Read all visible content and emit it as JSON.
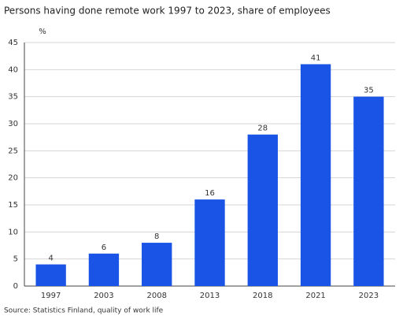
{
  "chart_data": {
    "type": "bar",
    "title": "Persons having done remote work 1997 to 2023, share of employees",
    "y_label": "%",
    "source": "Source: Statistics Finland, quality of work life",
    "categories": [
      "1997",
      "2003",
      "2008",
      "2013",
      "2018",
      "2021",
      "2023"
    ],
    "values": [
      4,
      6,
      8,
      16,
      28,
      41,
      35
    ],
    "color": "#1a54e6",
    "ylim": [
      0,
      45
    ],
    "yticks": [
      0,
      5,
      10,
      15,
      20,
      25,
      30,
      35,
      40,
      45
    ],
    "grid": true
  }
}
